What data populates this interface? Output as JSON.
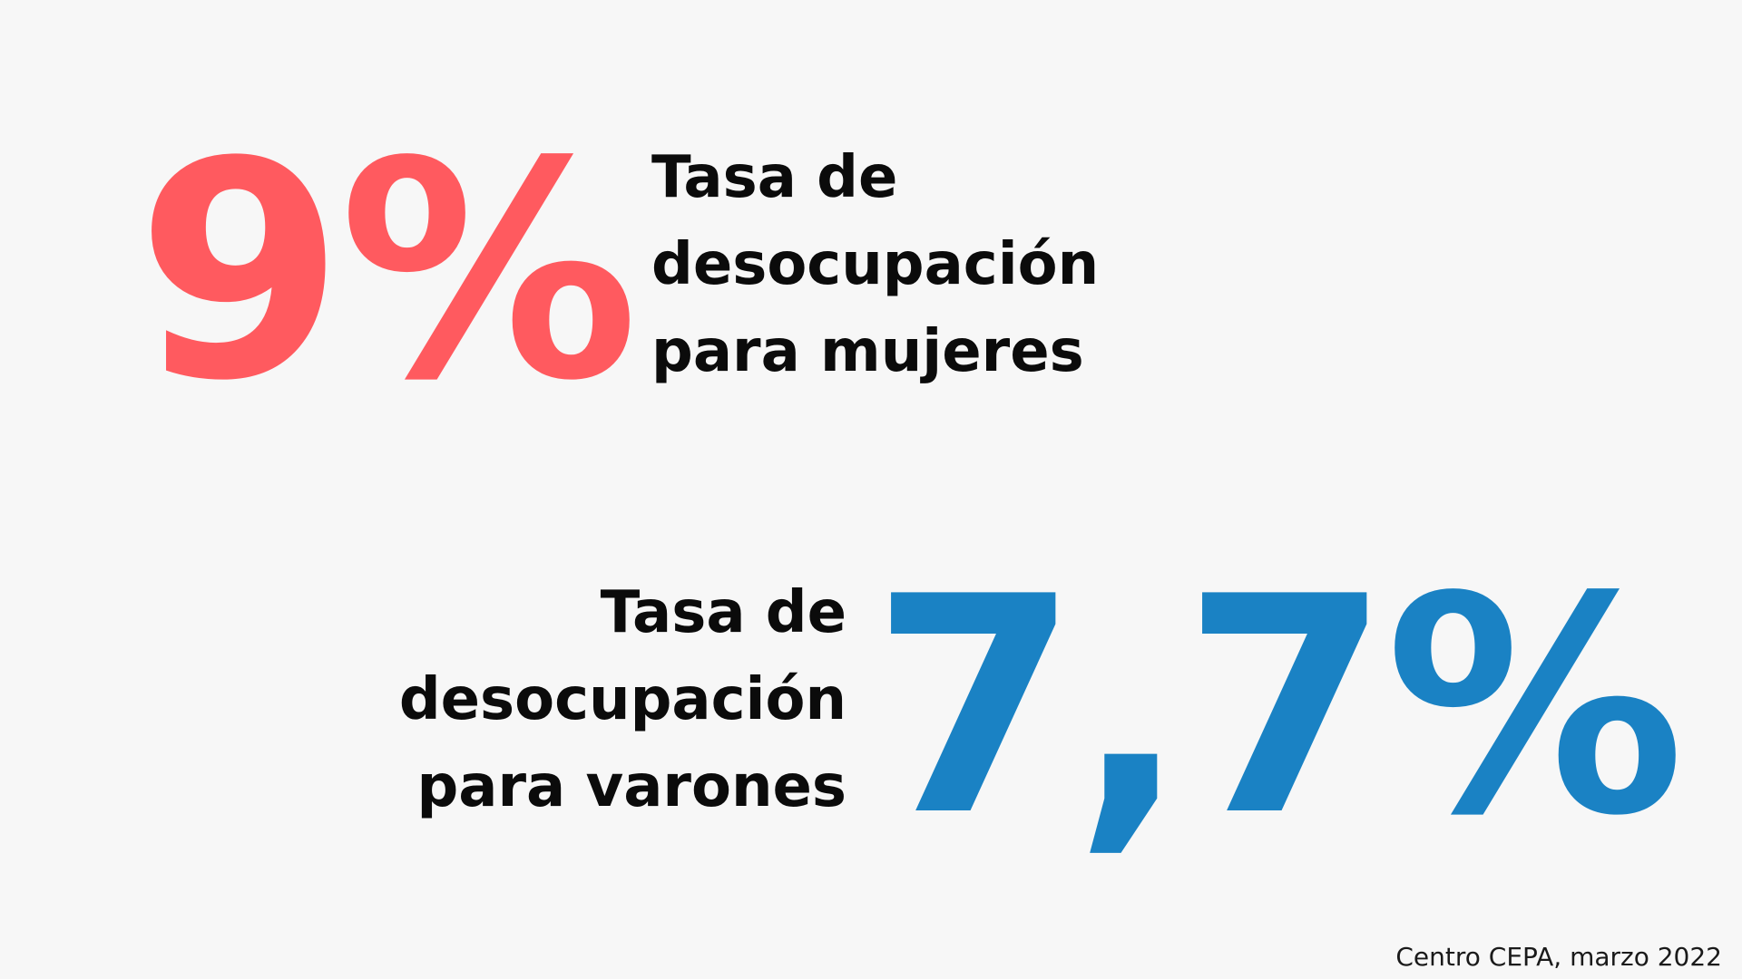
{
  "colors": {
    "background": "#f7f7f7",
    "women_accent": "#ff5a5f",
    "men_accent": "#1a82c4",
    "text": "#0b0b0b"
  },
  "women": {
    "value": "9%",
    "label_lines": [
      "Tasa de",
      "desocupación",
      "para mujeres"
    ]
  },
  "men": {
    "value": "7,7%",
    "label_lines": [
      "Tasa de",
      "desocupación",
      "para varones"
    ]
  },
  "source": "Centro CEPA, marzo 2022"
}
